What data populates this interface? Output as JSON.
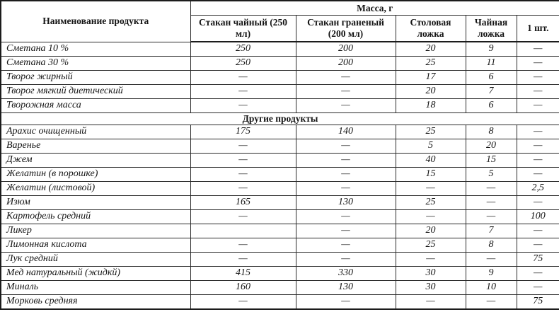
{
  "table": {
    "header": {
      "product_col": "Наименование продукта",
      "mass_group": "Масса, г",
      "columns": [
        "Стакан чайный (250 мл)",
        "Стакан граненый (200 мл)",
        "Столовая ложка",
        "Чайная ложка",
        "1 шт."
      ]
    },
    "dash": "—",
    "rows": [
      {
        "name": "Сметана 10 %",
        "values": [
          "250",
          "200",
          "20",
          "9",
          "—"
        ]
      },
      {
        "name": "Сметана 30 %",
        "values": [
          "250",
          "200",
          "25",
          "11",
          "—"
        ]
      },
      {
        "name": "Творог жирный",
        "values": [
          "—",
          "—",
          "17",
          "6",
          "—"
        ]
      },
      {
        "name": "Творог мягкий диетический",
        "values": [
          "—",
          "—",
          "20",
          "7",
          "—"
        ]
      },
      {
        "name": "Творожная масса",
        "values": [
          "—",
          "—",
          "18",
          "6",
          "—"
        ]
      },
      {
        "section": "Другие продукты"
      },
      {
        "name": "Арахис очищенный",
        "values": [
          "175",
          "140",
          "25",
          "8",
          "—"
        ]
      },
      {
        "name": "Варенье",
        "values": [
          "—",
          "—",
          "5",
          "20",
          "—"
        ]
      },
      {
        "name": "Джем",
        "values": [
          "—",
          "—",
          "40",
          "15",
          "—"
        ]
      },
      {
        "name": "Желатин (в порошке)",
        "values": [
          "—",
          "—",
          "15",
          "5",
          "—"
        ]
      },
      {
        "name": "Желатин (листовой)",
        "values": [
          "—",
          "—",
          "—",
          "—",
          "2,5"
        ]
      },
      {
        "name": "Изюм",
        "values": [
          "165",
          "130",
          "25",
          "—",
          "—"
        ]
      },
      {
        "name": "Картофель средний",
        "values": [
          "—",
          "—",
          "—",
          "—",
          "100"
        ]
      },
      {
        "name": "Ликер",
        "values": [
          "",
          "—",
          "20",
          "7",
          "—"
        ]
      },
      {
        "name": "Лимонная кислота",
        "values": [
          "—",
          "—",
          "25",
          "8",
          "—"
        ]
      },
      {
        "name": "Лук средний",
        "values": [
          "—",
          "—",
          "—",
          "—",
          "75"
        ]
      },
      {
        "name": "Мед натуральный (жидкй)",
        "values": [
          "415",
          "330",
          "30",
          "9",
          "—"
        ]
      },
      {
        "name": "Миналь",
        "values": [
          "160",
          "130",
          "30",
          "10",
          "—"
        ]
      },
      {
        "name": "Морковь средняя",
        "values": [
          "—",
          "—",
          "—",
          "—",
          "75"
        ]
      }
    ]
  }
}
